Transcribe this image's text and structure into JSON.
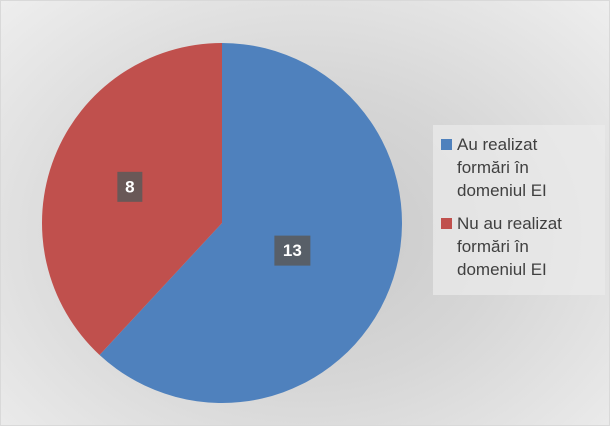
{
  "chart_data": {
    "type": "pie",
    "categories": [
      "Au realizat formări în domeniul EI",
      "Nu au realizat formări în domeniul EI"
    ],
    "values": [
      13,
      8
    ],
    "colors": [
      "#4f81bd",
      "#c0504d"
    ],
    "legend": "right"
  }
}
